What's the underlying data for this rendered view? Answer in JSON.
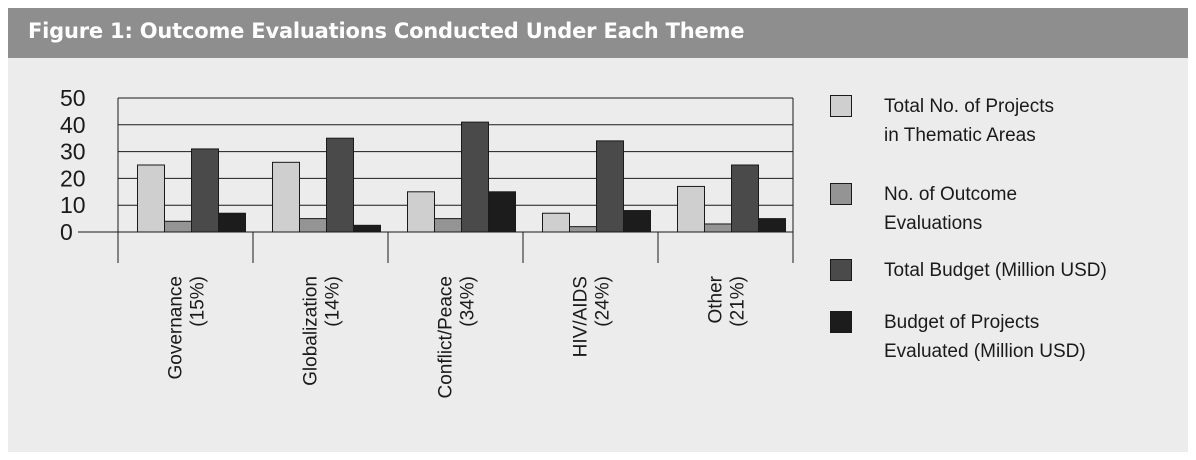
{
  "header": {
    "title": "Figure 1: Outcome Evaluations Conducted Under Each Theme"
  },
  "colors": {
    "header_bg": "#8e8e8e",
    "panel_bg": "#ececec"
  },
  "chart_data": {
    "type": "bar",
    "title": "Figure 1: Outcome Evaluations Conducted Under Each Theme",
    "xlabel": "",
    "ylabel": "",
    "ylim": [
      0,
      50
    ],
    "yticks": [
      "0",
      "10",
      "20",
      "30",
      "40",
      "50"
    ],
    "grid": true,
    "legend_position": "right",
    "categories": [
      {
        "name": "Governance",
        "pct": "(15%)"
      },
      {
        "name": "Globalization",
        "pct": "(14%)"
      },
      {
        "name": "Conflict/Peace",
        "pct": "(34%)"
      },
      {
        "name": "HIV/AIDS",
        "pct": "(24%)"
      },
      {
        "name": "Other",
        "pct": "(21%)"
      }
    ],
    "series": [
      {
        "name": "Total No. of Projects in Thematic Areas",
        "legend_lines": [
          "Total No. of Projects",
          "in Thematic Areas"
        ],
        "color": "#cfcfcf",
        "values": [
          25,
          26,
          15,
          7,
          17
        ]
      },
      {
        "name": "No. of Outcome Evaluations",
        "legend_lines": [
          "No. of Outcome",
          "Evaluations"
        ],
        "color": "#949494",
        "values": [
          4,
          5,
          5,
          2,
          3
        ]
      },
      {
        "name": "Total Budget (Million USD)",
        "legend_lines": [
          "Total Budget (Million USD)"
        ],
        "color": "#4a4a4a",
        "values": [
          31,
          35,
          41,
          34,
          25
        ]
      },
      {
        "name": "Budget of Projects Evaluated (Million USD)",
        "legend_lines": [
          "Budget of Projects",
          "Evaluated (Million USD)"
        ],
        "color": "#1c1c1c",
        "values": [
          7,
          2.5,
          15,
          8,
          5
        ]
      }
    ]
  }
}
